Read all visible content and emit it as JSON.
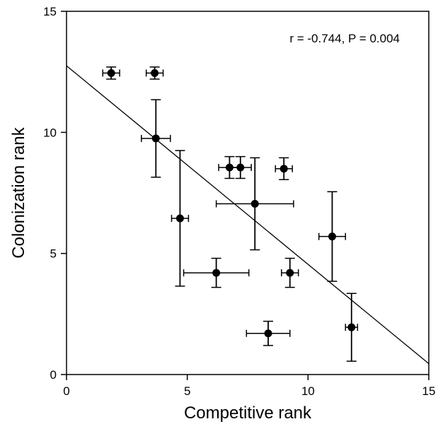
{
  "chart_data": {
    "type": "scatter",
    "xlabel": "Competitive rank",
    "ylabel": "Colonization rank",
    "xlim": [
      0,
      15
    ],
    "ylim": [
      0,
      15
    ],
    "xticks": [
      "0",
      "5",
      "10",
      "15"
    ],
    "yticks": [
      "0",
      "5",
      "10",
      "15"
    ],
    "annotation": "r = -0.744, P = 0.004",
    "grid": false,
    "points": [
      {
        "x": 1.85,
        "y": 12.45,
        "xerr": [
          0.35,
          0.35
        ],
        "yerr": [
          0.25,
          0.25
        ]
      },
      {
        "x": 3.65,
        "y": 12.45,
        "xerr": [
          0.35,
          0.35
        ],
        "yerr": [
          0.25,
          0.25
        ]
      },
      {
        "x": 3.7,
        "y": 9.75,
        "xerr": [
          0.6,
          0.6
        ],
        "yerr": [
          1.6,
          1.6
        ]
      },
      {
        "x": 4.7,
        "y": 6.45,
        "xerr": [
          0.35,
          0.35
        ],
        "yerr": [
          2.8,
          2.8
        ]
      },
      {
        "x": 6.2,
        "y": 4.2,
        "xerr": [
          1.35,
          1.35
        ],
        "yerr": [
          0.6,
          0.6
        ]
      },
      {
        "x": 6.75,
        "y": 8.55,
        "xerr": [
          0.45,
          0.45
        ],
        "yerr": [
          0.45,
          0.45
        ]
      },
      {
        "x": 7.2,
        "y": 8.55,
        "xerr": [
          0.45,
          0.45
        ],
        "yerr": [
          0.45,
          0.45
        ]
      },
      {
        "x": 7.8,
        "y": 7.05,
        "xerr": [
          1.6,
          1.6
        ],
        "yerr": [
          1.9,
          1.9
        ]
      },
      {
        "x": 8.35,
        "y": 1.7,
        "xerr": [
          0.9,
          0.9
        ],
        "yerr": [
          0.5,
          0.5
        ]
      },
      {
        "x": 9.0,
        "y": 8.5,
        "xerr": [
          0.35,
          0.35
        ],
        "yerr": [
          0.45,
          0.45
        ]
      },
      {
        "x": 9.25,
        "y": 4.2,
        "xerr": [
          0.35,
          0.35
        ],
        "yerr": [
          0.6,
          0.6
        ]
      },
      {
        "x": 11.0,
        "y": 5.7,
        "xerr": [
          0.55,
          0.55
        ],
        "yerr": [
          1.85,
          1.85
        ]
      },
      {
        "x": 11.8,
        "y": 1.95,
        "xerr": [
          0.25,
          0.25
        ],
        "yerr": [
          1.4,
          1.4
        ]
      }
    ],
    "fit_line": {
      "x": [
        0,
        15
      ],
      "y": [
        12.75,
        0.45
      ]
    }
  }
}
